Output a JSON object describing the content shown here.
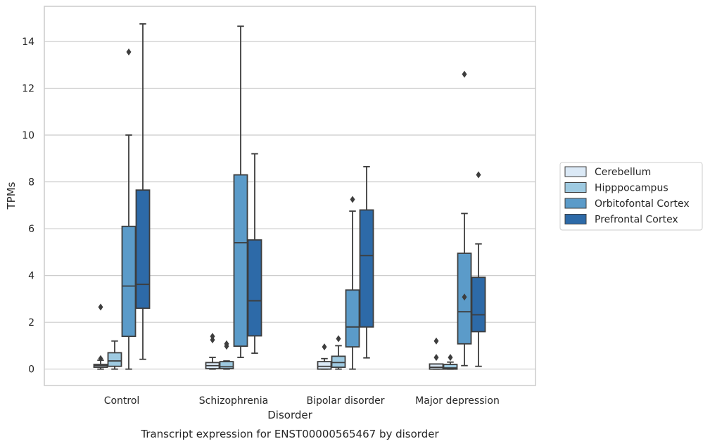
{
  "chart_data": {
    "type": "box",
    "caption": "Transcript expression for ENST00000565467 by disorder",
    "xlabel": "Disorder",
    "ylabel": "TPMs",
    "ylim": [
      -0.7,
      15.5
    ],
    "yticks": [
      0,
      2,
      4,
      6,
      8,
      10,
      12,
      14
    ],
    "grid": true,
    "legend_position": "right",
    "categories": [
      "Control",
      "Schizophrenia",
      "Bipolar disorder",
      "Major depression"
    ],
    "series": [
      {
        "name": "Cerebellum",
        "color": "#dbe9f6",
        "boxes": [
          {
            "whisker_low": 0.0,
            "q1": 0.08,
            "median": 0.15,
            "q3": 0.2,
            "whisker_high": 0.38,
            "outliers": [
              0.45,
              2.65
            ]
          },
          {
            "whisker_low": 0.0,
            "q1": 0.02,
            "median": 0.15,
            "q3": 0.28,
            "whisker_high": 0.5,
            "outliers": [
              1.25,
              1.4
            ]
          },
          {
            "whisker_low": 0.0,
            "q1": 0.0,
            "median": 0.12,
            "q3": 0.32,
            "whisker_high": 0.45,
            "outliers": [
              0.95
            ]
          },
          {
            "whisker_low": 0.0,
            "q1": 0.0,
            "median": 0.08,
            "q3": 0.22,
            "whisker_high": 0.22,
            "outliers": [
              0.5,
              1.2
            ]
          }
        ]
      },
      {
        "name": "Hipppocampus",
        "color": "#9ecae1",
        "boxes": [
          {
            "whisker_low": 0.0,
            "q1": 0.12,
            "median": 0.35,
            "q3": 0.7,
            "whisker_high": 1.2,
            "outliers": []
          },
          {
            "whisker_low": 0.0,
            "q1": 0.02,
            "median": 0.1,
            "q3": 0.32,
            "whisker_high": 0.35,
            "outliers": [
              0.98,
              1.08
            ]
          },
          {
            "whisker_low": 0.0,
            "q1": 0.08,
            "median": 0.28,
            "q3": 0.55,
            "whisker_high": 1.0,
            "outliers": [
              1.3
            ]
          },
          {
            "whisker_low": 0.0,
            "q1": 0.0,
            "median": 0.05,
            "q3": 0.2,
            "whisker_high": 0.3,
            "outliers": [
              0.5
            ]
          }
        ]
      },
      {
        "name": "Orbitofontal Cortex",
        "color": "#5b9bc9",
        "boxes": [
          {
            "whisker_low": 0.0,
            "q1": 1.4,
            "median": 3.55,
            "q3": 6.1,
            "whisker_high": 10.0,
            "outliers": [
              13.55
            ]
          },
          {
            "whisker_low": 0.5,
            "q1": 0.98,
            "median": 5.4,
            "q3": 8.3,
            "whisker_high": 14.65,
            "outliers": []
          },
          {
            "whisker_low": 0.0,
            "q1": 0.95,
            "median": 1.8,
            "q3": 3.38,
            "whisker_high": 6.75,
            "outliers": [
              7.25
            ]
          },
          {
            "whisker_low": 0.15,
            "q1": 1.08,
            "median": 2.45,
            "q3": 4.95,
            "whisker_high": 6.65,
            "outliers": [
              3.08,
              12.6
            ]
          }
        ]
      },
      {
        "name": "Prefrontal Cortex",
        "color": "#2d6aa8",
        "boxes": [
          {
            "whisker_low": 0.42,
            "q1": 2.6,
            "median": 3.62,
            "q3": 7.65,
            "whisker_high": 14.75,
            "outliers": []
          },
          {
            "whisker_low": 0.68,
            "q1": 1.42,
            "median": 2.92,
            "q3": 5.52,
            "whisker_high": 9.2,
            "outliers": []
          },
          {
            "whisker_low": 0.48,
            "q1": 1.8,
            "median": 4.85,
            "q3": 6.8,
            "whisker_high": 8.65,
            "outliers": []
          },
          {
            "whisker_low": 0.12,
            "q1": 1.6,
            "median": 2.32,
            "q3": 3.92,
            "whisker_high": 5.35,
            "outliers": [
              8.3
            ]
          }
        ]
      }
    ]
  }
}
